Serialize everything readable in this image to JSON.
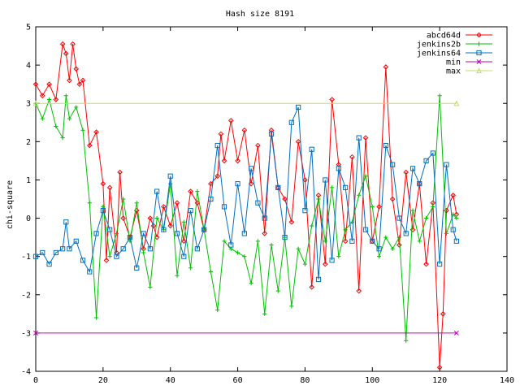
{
  "chart_data": {
    "type": "line",
    "title": "Hash size 8191",
    "xlabel": "",
    "ylabel": "chi-square",
    "xlim": [
      0,
      140
    ],
    "ylim": [
      -4,
      5
    ],
    "xticks": [
      0,
      20,
      40,
      60,
      80,
      100,
      120,
      140
    ],
    "yticks": [
      -4,
      -3,
      -2,
      -1,
      0,
      1,
      2,
      3,
      4,
      5
    ],
    "grid": false,
    "legend_position": "top-right",
    "series": [
      {
        "name": "abcd64d",
        "color": "#ff0000",
        "marker": "diamond",
        "x": [
          0,
          2,
          4,
          6,
          8,
          9,
          10,
          11,
          12,
          13,
          14,
          16,
          18,
          20,
          21,
          22,
          24,
          25,
          26,
          28,
          30,
          32,
          34,
          35,
          36,
          38,
          40,
          42,
          44,
          46,
          48,
          50,
          52,
          54,
          55,
          56,
          58,
          60,
          62,
          64,
          66,
          68,
          70,
          72,
          74,
          76,
          78,
          80,
          82,
          84,
          86,
          88,
          90,
          92,
          94,
          96,
          98,
          100,
          102,
          104,
          106,
          108,
          110,
          112,
          114,
          116,
          118,
          120,
          121,
          122,
          124,
          125
        ],
        "y": [
          3.5,
          3.2,
          3.5,
          3.1,
          4.55,
          4.3,
          3.6,
          4.55,
          3.9,
          3.5,
          3.6,
          1.9,
          2.25,
          0.9,
          -1.1,
          0.8,
          -0.9,
          1.2,
          0.0,
          -0.5,
          0.2,
          -0.8,
          0.0,
          -0.2,
          -0.5,
          0.3,
          -0.2,
          0.4,
          -0.6,
          0.7,
          0.4,
          -0.3,
          0.9,
          1.1,
          2.2,
          1.5,
          2.55,
          1.5,
          2.3,
          0.9,
          1.9,
          -0.4,
          2.3,
          0.8,
          0.5,
          -0.1,
          2.0,
          1.0,
          -1.8,
          0.6,
          -1.2,
          3.1,
          1.4,
          -0.6,
          1.6,
          -1.9,
          2.1,
          -0.6,
          0.3,
          3.95,
          0.5,
          -0.7,
          1.2,
          -0.3,
          0.9,
          -1.2,
          0.4,
          -3.9,
          -2.5,
          0.2,
          0.6,
          0.1
        ]
      },
      {
        "name": "jenkins2b",
        "color": "#00c000",
        "marker": "plus",
        "x": [
          0,
          2,
          4,
          6,
          8,
          9,
          10,
          12,
          14,
          16,
          18,
          20,
          22,
          24,
          26,
          28,
          30,
          32,
          34,
          36,
          38,
          40,
          42,
          44,
          46,
          48,
          50,
          52,
          54,
          56,
          58,
          60,
          62,
          64,
          66,
          68,
          70,
          72,
          74,
          76,
          78,
          80,
          82,
          84,
          86,
          88,
          90,
          92,
          94,
          96,
          98,
          100,
          102,
          104,
          106,
          108,
          110,
          112,
          114,
          116,
          118,
          120,
          122,
          124,
          125
        ],
        "y": [
          3.0,
          2.6,
          3.1,
          2.4,
          2.1,
          3.2,
          2.6,
          2.9,
          2.3,
          0.4,
          -2.6,
          0.3,
          -1.0,
          -0.4,
          0.5,
          -0.6,
          0.4,
          -0.9,
          -1.8,
          0.0,
          -0.3,
          0.9,
          -1.5,
          -0.1,
          -1.3,
          0.7,
          -0.3,
          -1.4,
          -2.4,
          -0.6,
          -0.8,
          -0.9,
          -1.0,
          -1.7,
          -0.6,
          -2.5,
          -0.7,
          -1.9,
          -0.5,
          -2.3,
          -0.8,
          -1.2,
          -0.2,
          0.5,
          -0.6,
          0.8,
          -1.0,
          -0.3,
          -0.1,
          0.6,
          1.1,
          0.3,
          -1.0,
          -0.5,
          -0.8,
          -0.5,
          -3.2,
          0.2,
          -0.6,
          0.0,
          0.3,
          3.2,
          -0.4,
          0.1,
          0.0
        ]
      },
      {
        "name": "jenkins64",
        "color": "#0070c0",
        "marker": "square",
        "x": [
          0,
          2,
          4,
          6,
          8,
          9,
          10,
          12,
          14,
          16,
          18,
          20,
          22,
          24,
          26,
          28,
          30,
          32,
          34,
          36,
          38,
          40,
          42,
          44,
          46,
          48,
          50,
          52,
          54,
          56,
          58,
          60,
          62,
          64,
          66,
          68,
          70,
          72,
          74,
          76,
          78,
          80,
          82,
          84,
          86,
          88,
          90,
          92,
          94,
          96,
          98,
          100,
          102,
          104,
          106,
          108,
          110,
          112,
          114,
          116,
          118,
          120,
          122,
          124,
          125
        ],
        "y": [
          -1.0,
          -0.9,
          -1.2,
          -0.9,
          -0.8,
          -0.1,
          -0.8,
          -0.6,
          -1.1,
          -1.4,
          -0.4,
          0.2,
          -0.3,
          -1.0,
          -0.8,
          -0.5,
          -1.3,
          -0.4,
          -0.8,
          0.7,
          -0.3,
          1.1,
          -0.4,
          -1.0,
          0.2,
          -0.8,
          -0.3,
          0.5,
          1.9,
          0.3,
          -0.7,
          0.9,
          -0.4,
          1.3,
          0.4,
          0.0,
          2.2,
          0.8,
          -0.5,
          2.5,
          2.9,
          0.2,
          1.8,
          -1.6,
          1.0,
          -1.1,
          1.3,
          0.8,
          -0.6,
          2.1,
          -0.3,
          -0.6,
          -0.8,
          1.9,
          1.4,
          0.0,
          -0.4,
          1.3,
          0.9,
          1.5,
          1.7,
          -1.2,
          1.4,
          -0.3,
          -0.6
        ]
      },
      {
        "name": "min",
        "color": "#c000c0",
        "marker": "x",
        "x": [
          0,
          125
        ],
        "y": [
          -3,
          -3
        ]
      },
      {
        "name": "max",
        "color": "#c0e060",
        "marker": "triangle",
        "x": [
          0,
          125
        ],
        "y": [
          3,
          3
        ]
      }
    ]
  }
}
